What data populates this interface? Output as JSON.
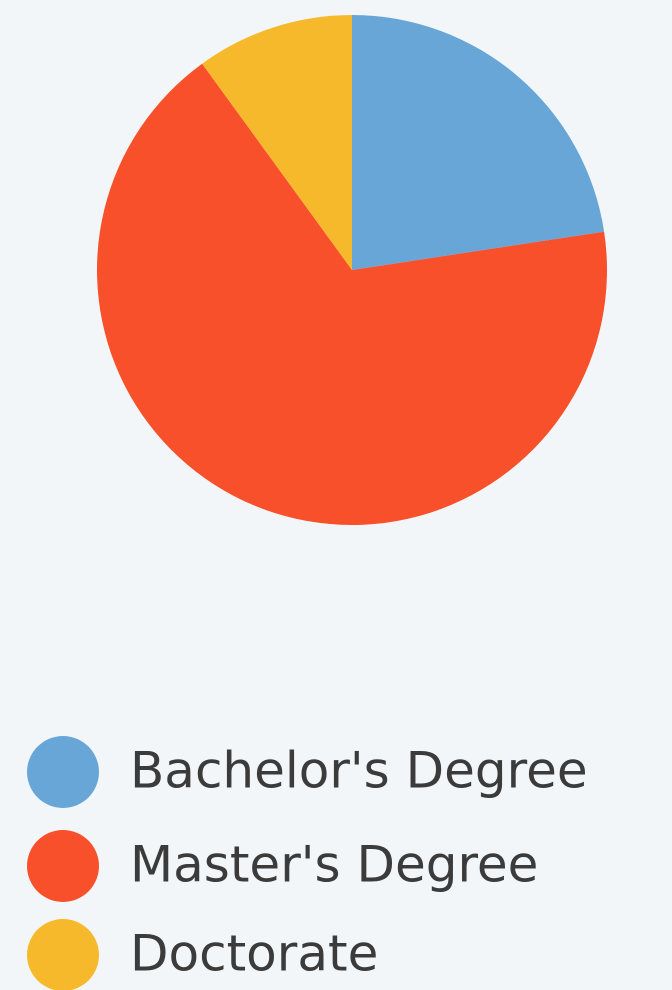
{
  "chart_data": {
    "type": "pie",
    "categories": [
      "Bachelor's Degree",
      "Master's Degree",
      "Doctorate"
    ],
    "values": [
      22.6,
      67.4,
      10
    ],
    "colors": [
      "#68a6d8",
      "#f7502a",
      "#f6b92c"
    ]
  }
}
